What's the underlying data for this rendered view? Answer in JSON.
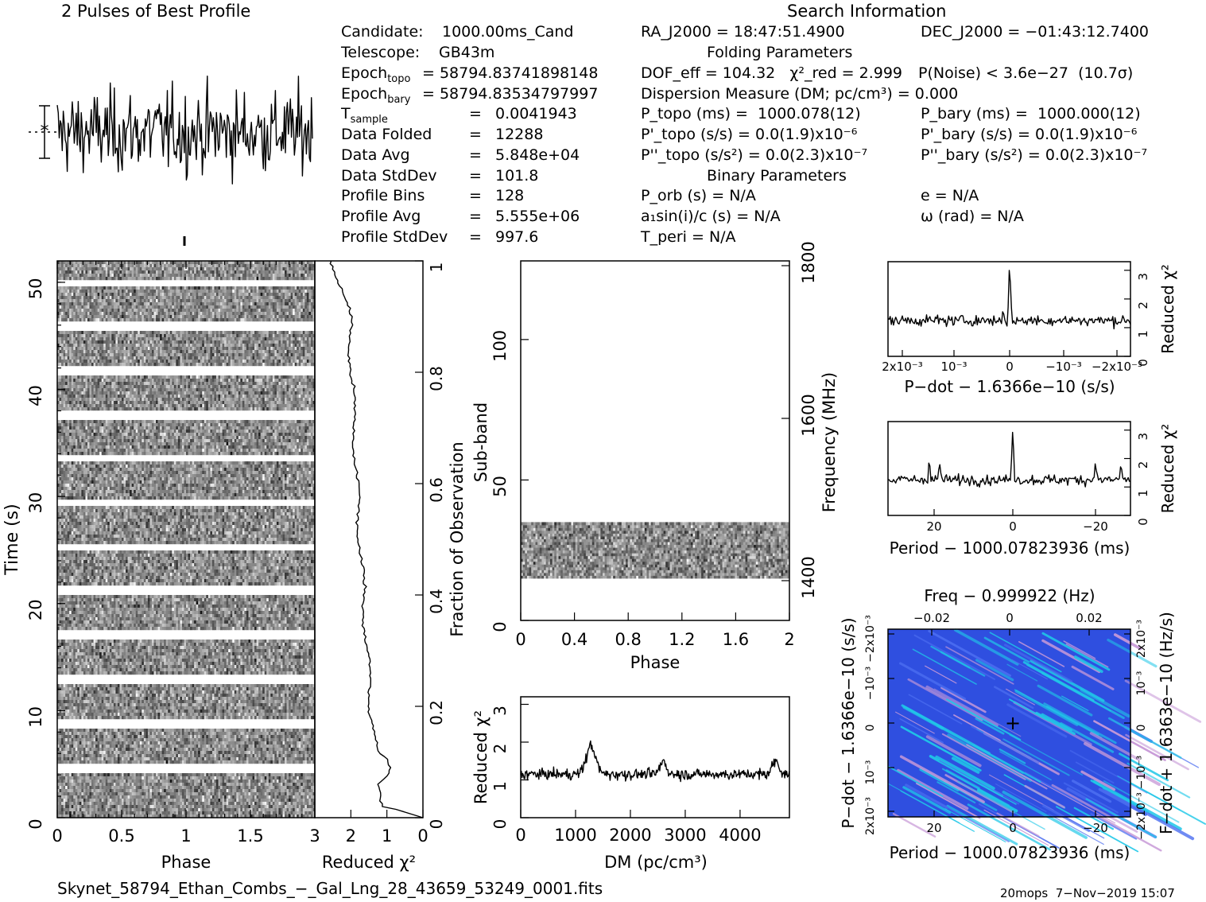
{
  "header": {
    "profile_title": "2 Pulses of Best Profile",
    "search_title": "Search Information"
  },
  "info_left": [
    {
      "label": "Candidate:",
      "value": "1000.00ms_Cand"
    },
    {
      "label": "Telescope:",
      "value": "GB43m"
    },
    {
      "label": "Epoch_topo",
      "value": "= 58794.83741898148"
    },
    {
      "label": "Epoch_bary",
      "value": "= 58794.83534797997"
    },
    {
      "label": "T_sample",
      "value": "0.0041943"
    },
    {
      "label": "Data Folded",
      "value": "12288"
    },
    {
      "label": "Data Avg",
      "value": "5.848e+04"
    },
    {
      "label": "Data StdDev",
      "value": "101.8"
    },
    {
      "label": "Profile Bins",
      "value": "128"
    },
    {
      "label": "Profile Avg",
      "value": "5.555e+06"
    },
    {
      "label": "Profile StdDev",
      "value": "997.6"
    }
  ],
  "info_mid": {
    "ra": "RA_J2000 = 18:47:51.4900",
    "folding_title": "Folding Parameters",
    "dof": "DOF_eff = 104.32   χ²_red = 2.999",
    "dm": "Dispersion Measure (DM; pc/cm³) = 0.000",
    "ptopo": "P_topo (ms) =  1000.078(12)",
    "pdtopo": "P'_topo (s/s) = 0.0(1.9)x10⁻⁶",
    "pddtopo": "P''_topo (s/s²) = 0.0(2.3)x10⁻⁷",
    "binary_title": "Binary Parameters",
    "porb": "P_orb (s) = N/A",
    "asini": "a₁sin(i)/c (s) = N/A",
    "tperi": "T_peri = N/A"
  },
  "info_right": {
    "dec": "DEC_J2000 = −01:43:12.7400",
    "pnoise": "P(Noise) < 3.6e−27  (10.7σ)",
    "pbary": "P_bary (ms) =  1000.000(12)",
    "pdbary": "P'_bary (s/s) = 0.0(1.9)x10⁻⁶",
    "pddbary": "P''_bary (s/s²) = 0.0(2.3)x10⁻⁷",
    "ecc": "e = N/A",
    "omega": "ω (rad) = N/A"
  },
  "footer": {
    "filename": "Skynet_58794_Ethan_Combs_−_Gal_Lng_28_43659_53249_0001.fits",
    "stamp": "20mops  7−Nov−2019 15:07"
  },
  "colors": {
    "ink": "#000000",
    "plane_bg": "#2f4fe0",
    "plane_streak": "#20c8e8",
    "plane_pink": "#c89ad8"
  },
  "chart_data": [
    {
      "type": "line",
      "id": "pulse_profile",
      "title": "2 Pulses of Best Profile",
      "x": "phase 0-2",
      "note": "noise-like profile, 256 bins"
    },
    {
      "type": "heatmap",
      "id": "time_phase",
      "xlabel": "Phase",
      "ylabel": "Time (s)",
      "xlim": [
        0,
        2
      ],
      "ylim": [
        0,
        52
      ],
      "xticks": [
        "0",
        "0.5",
        "1",
        "1.5"
      ],
      "yticks": [
        "0",
        "10",
        "20",
        "30",
        "40",
        "50"
      ]
    },
    {
      "type": "line",
      "id": "chi_vs_time",
      "xlabel": "Reduced χ²",
      "ylabel": "Fraction of Observation",
      "xlim": [
        3,
        0
      ],
      "ylim": [
        0,
        1
      ],
      "xticks": [
        "3",
        "2",
        "1",
        "0"
      ],
      "yticks": [
        "0",
        "0.2",
        "0.4",
        "0.6",
        "0.8",
        "1"
      ]
    },
    {
      "type": "heatmap",
      "id": "subband_phase",
      "xlabel": "Phase",
      "ylabel": "Sub-band",
      "y2label": "Frequency (MHz)",
      "xlim": [
        0,
        2
      ],
      "ylim": [
        0,
        128
      ],
      "xticks": [
        "0",
        "0.4",
        "0.8",
        "1.2",
        "1.6",
        "2"
      ],
      "yticks": [
        "0",
        "50",
        "100"
      ],
      "y2ticks": [
        "1400",
        "1600",
        "1800"
      ],
      "active_subbands": [
        15,
        35
      ]
    },
    {
      "type": "line",
      "id": "chi_vs_dm",
      "xlabel": "DM (pc/cm³)",
      "ylabel": "Reduced χ²",
      "xlim": [
        0,
        4900
      ],
      "ylim": [
        0,
        3.2
      ],
      "xticks": [
        "0",
        "1000",
        "2000",
        "3000",
        "4000"
      ],
      "yticks": [
        "0",
        "1",
        "2",
        "3"
      ],
      "peak_dm": 1280,
      "peak_value": 1.95
    },
    {
      "type": "line",
      "id": "chi_vs_pdot",
      "xlabel": "P−dot − 1.6366e−10 (s/s)",
      "ylabel": "Reduced χ²",
      "xticks": [
        "2x10⁻³",
        "10⁻³",
        "0",
        "−10⁻³",
        "−2x10⁻³"
      ],
      "yticks": [
        "0",
        "1",
        "2",
        "3"
      ],
      "peak_value": 3.0
    },
    {
      "type": "line",
      "id": "chi_vs_period",
      "xlabel": "Period − 1000.07823936 (ms)",
      "ylabel": "Reduced χ²",
      "xticks": [
        "20",
        "0",
        "−20"
      ],
      "yticks": [
        "0",
        "1",
        "2",
        "3"
      ],
      "peak_value": 3.1
    },
    {
      "type": "heatmap",
      "id": "p_pdot_plane",
      "xlabel": "Period − 1000.07823936 (ms)",
      "ylabel": "P−dot − 1.6366e−10 (s/s)",
      "x2label": "Freq − 0.999922 (Hz)",
      "y2label": "F−dot + 1.6363e−10 (Hz/s)",
      "xticks": [
        "20",
        "0",
        "−20"
      ],
      "x2ticks": [
        "−0.02",
        "0",
        "0.02"
      ],
      "yticks": [
        "2x10⁻³",
        "10⁻³",
        "0",
        "−10⁻³",
        "−2x10⁻³"
      ],
      "y2ticks": [
        "−2x10⁻³",
        "−10⁻³",
        "0",
        "10⁻³",
        "2x10⁻³"
      ]
    }
  ]
}
